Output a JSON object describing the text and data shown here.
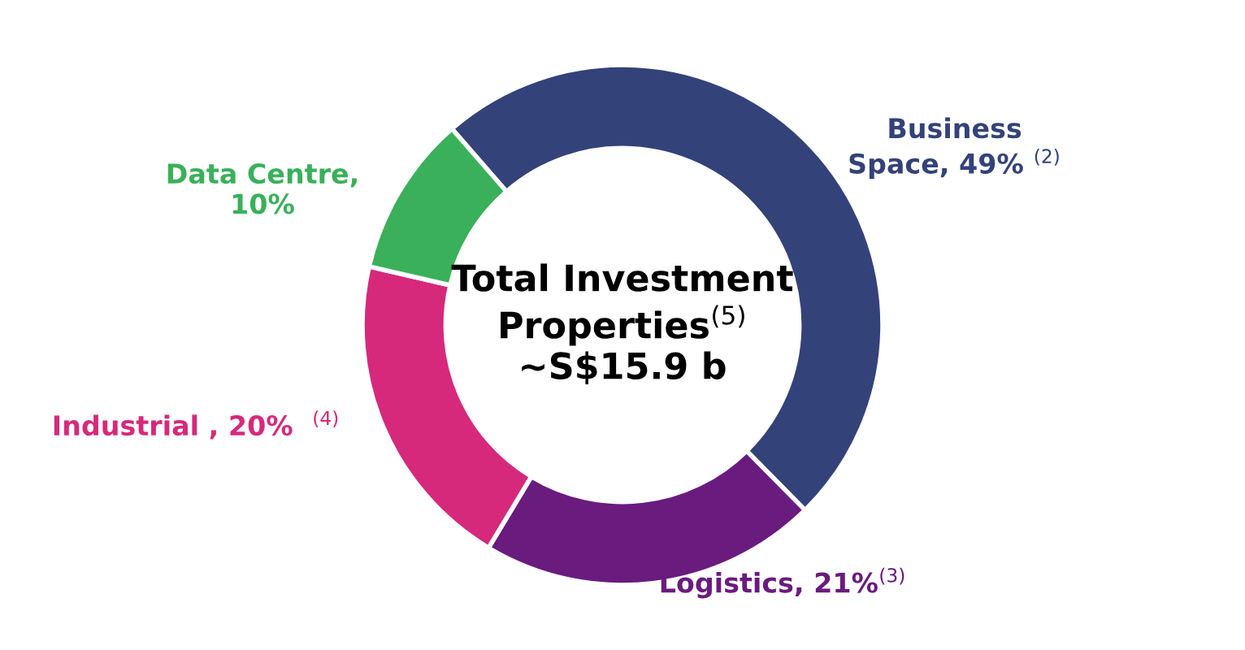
{
  "chart_data": {
    "type": "donut",
    "title": "Total Investment\nProperties$^{(5)}$\n~S$15.9 b",
    "categories": [
      "Business\nSpace, 49% $^{(2)}$",
      "Logistics, 21%$^{(3)}$",
      "Industrial , 20%  $^{(4)}$",
      "Data Centre,\n10%"
    ],
    "values": [
      49,
      21,
      20,
      10
    ],
    "colors": [
      "#34427a",
      "#6a1b7e",
      "#d6297b",
      "#3ab05a"
    ]
  }
}
